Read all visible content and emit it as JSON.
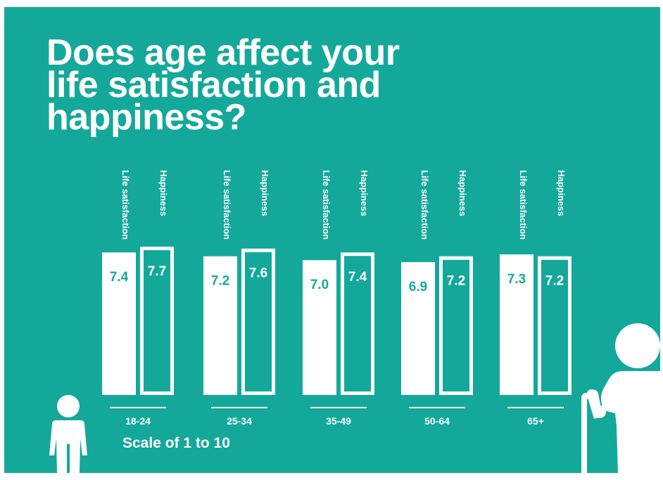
{
  "colors": {
    "background": "#14a89a",
    "bar_fill": "#ffffff",
    "text": "#ffffff",
    "value_text": "#14a89a"
  },
  "title_lines": [
    "Does age affect your",
    "life satisfaction and",
    "happiness?"
  ],
  "scale_note": "Scale of 1 to 10",
  "chart_data": {
    "type": "bar",
    "categories": [
      "18-24",
      "25-34",
      "35-49",
      "50-64",
      "65+"
    ],
    "series": [
      {
        "name": "Life satisfaction",
        "values": [
          7.4,
          7.2,
          7.0,
          6.9,
          7.3
        ],
        "style": "filled"
      },
      {
        "name": "Happiness",
        "values": [
          7.7,
          7.6,
          7.4,
          7.2,
          7.2
        ],
        "style": "outlined"
      }
    ],
    "value_labels": [
      [
        "7.4",
        "7.2",
        "7.0",
        "6.9",
        "7.3"
      ],
      [
        "7.7",
        "7.6",
        "7.4",
        "7.2",
        "7.2"
      ]
    ],
    "ylim": [
      0,
      7.7
    ],
    "grid": false,
    "series_labels_placement": "above-bars-vertical",
    "title": "",
    "xlabel": "",
    "ylabel": ""
  },
  "figures": {
    "left": "child-figure-icon",
    "right": "elderly-person-with-cane-icon"
  }
}
